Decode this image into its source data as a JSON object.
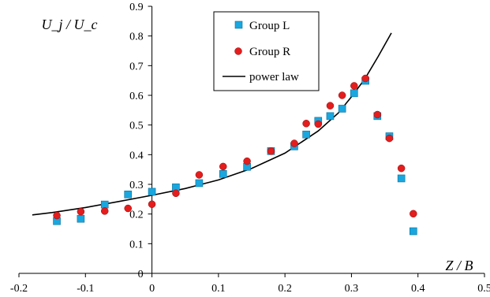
{
  "chart_data": {
    "type": "scatter",
    "title": "",
    "xlabel": "Z / B",
    "ylabel": "U_j / U_c",
    "xlim": [
      -0.2,
      0.5
    ],
    "ylim": [
      0,
      0.9
    ],
    "x_ticks": [
      "-0.2",
      "-0.1",
      "0",
      "0.1",
      "0.2",
      "0.3",
      "0.4",
      "0.5"
    ],
    "y_ticks": [
      "0",
      "0.1",
      "0.2",
      "0.3",
      "0.4",
      "0.5",
      "0.6",
      "0.7",
      "0.8",
      "0.9"
    ],
    "legend_position": "top-center",
    "grid": false,
    "series": [
      {
        "name": "Group L",
        "marker": "square",
        "color": "#1aa7df",
        "points": [
          [
            -0.143,
            0.176
          ],
          [
            -0.107,
            0.184
          ],
          [
            -0.071,
            0.232
          ],
          [
            -0.036,
            0.266
          ],
          [
            0.0,
            0.275
          ],
          [
            0.036,
            0.29
          ],
          [
            0.071,
            0.304
          ],
          [
            0.107,
            0.335
          ],
          [
            0.143,
            0.359
          ],
          [
            0.179,
            0.412
          ],
          [
            0.214,
            0.428
          ],
          [
            0.232,
            0.468
          ],
          [
            0.25,
            0.514
          ],
          [
            0.268,
            0.53
          ],
          [
            0.286,
            0.555
          ],
          [
            0.304,
            0.607
          ],
          [
            0.321,
            0.649
          ],
          [
            0.339,
            0.53
          ],
          [
            0.357,
            0.462
          ],
          [
            0.375,
            0.32
          ],
          [
            0.393,
            0.142
          ]
        ]
      },
      {
        "name": "Group R",
        "marker": "circle",
        "color": "#e41d1d",
        "points": [
          [
            -0.143,
            0.195
          ],
          [
            -0.107,
            0.208
          ],
          [
            -0.071,
            0.21
          ],
          [
            -0.036,
            0.219
          ],
          [
            0.0,
            0.233
          ],
          [
            0.036,
            0.27
          ],
          [
            0.071,
            0.332
          ],
          [
            0.107,
            0.36
          ],
          [
            0.143,
            0.378
          ],
          [
            0.179,
            0.412
          ],
          [
            0.214,
            0.438
          ],
          [
            0.232,
            0.505
          ],
          [
            0.25,
            0.503
          ],
          [
            0.268,
            0.565
          ],
          [
            0.286,
            0.6
          ],
          [
            0.304,
            0.632
          ],
          [
            0.321,
            0.657
          ],
          [
            0.339,
            0.535
          ],
          [
            0.357,
            0.455
          ],
          [
            0.375,
            0.354
          ],
          [
            0.393,
            0.201
          ]
        ]
      },
      {
        "name": "power law",
        "marker": "line",
        "color": "#000000",
        "points": [
          [
            -0.18,
            0.197
          ],
          [
            -0.15,
            0.205
          ],
          [
            -0.1,
            0.222
          ],
          [
            -0.05,
            0.242
          ],
          [
            0.0,
            0.263
          ],
          [
            0.05,
            0.286
          ],
          [
            0.1,
            0.315
          ],
          [
            0.15,
            0.354
          ],
          [
            0.2,
            0.405
          ],
          [
            0.25,
            0.48
          ],
          [
            0.28,
            0.54
          ],
          [
            0.3,
            0.595
          ],
          [
            0.32,
            0.655
          ],
          [
            0.34,
            0.73
          ],
          [
            0.36,
            0.81
          ]
        ]
      }
    ]
  }
}
